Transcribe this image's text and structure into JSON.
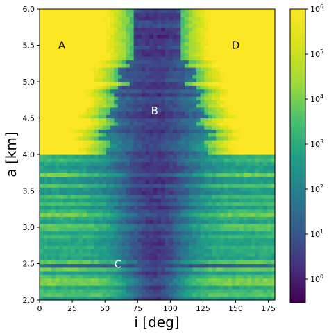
{
  "chart_data": {
    "type": "heatmap",
    "title": "",
    "xlabel": "i [deg]",
    "ylabel": "a [km]",
    "xlim": [
      0,
      180
    ],
    "ylim": [
      2.0,
      6.0
    ],
    "x_ticks": [
      0,
      25,
      50,
      75,
      100,
      125,
      150,
      175
    ],
    "y_ticks": [
      "2.0",
      "2.5",
      "3.0",
      "3.5",
      "4.0",
      "4.5",
      "5.0",
      "5.5",
      "6.0"
    ],
    "colormap": "viridis",
    "color_scale": "log",
    "colorbar_range": [
      0.3,
      1000000
    ],
    "colorbar_ticks": [
      {
        "base": "10",
        "exp": "0",
        "value": 1
      },
      {
        "base": "10",
        "exp": "1",
        "value": 10
      },
      {
        "base": "10",
        "exp": "2",
        "value": 100
      },
      {
        "base": "10",
        "exp": "3",
        "value": 1000
      },
      {
        "base": "10",
        "exp": "4",
        "value": 10000
      },
      {
        "base": "10",
        "exp": "5",
        "value": 100000
      },
      {
        "base": "10",
        "exp": "6",
        "value": 1000000
      }
    ],
    "x_bins": 60,
    "y_bins": 80,
    "annotations": [
      {
        "label": "A",
        "i": 17,
        "a": 5.5,
        "color": "#000000"
      },
      {
        "label": "B",
        "i": 88,
        "a": 4.6,
        "color": "#ffffff"
      },
      {
        "label": "C",
        "i": 60,
        "a": 2.49,
        "color": "#ffffff"
      },
      {
        "label": "D",
        "i": 150,
        "a": 5.5,
        "color": "#000000"
      }
    ]
  }
}
